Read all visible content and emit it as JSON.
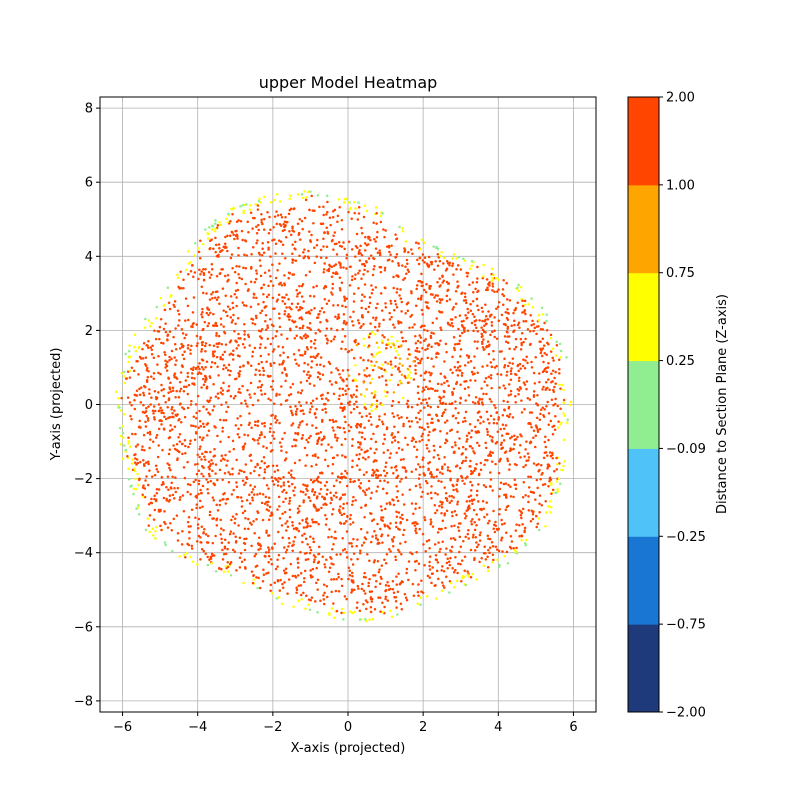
{
  "chart_data": {
    "type": "scatter",
    "title": "upper Model Heatmap",
    "xlabel": "X-axis (projected)",
    "ylabel": "Y-axis (projected)",
    "xlim": [
      -6.6,
      6.6
    ],
    "ylim": [
      -8.3,
      8.3
    ],
    "xticks": [
      -6,
      -4,
      -2,
      0,
      2,
      4,
      6
    ],
    "yticks": [
      -8,
      -6,
      -4,
      -2,
      0,
      2,
      4,
      6,
      8
    ],
    "xtick_labels": [
      "−6",
      "−4",
      "−2",
      "0",
      "2",
      "4",
      "6"
    ],
    "ytick_labels": [
      "−8",
      "−6",
      "−4",
      "−2",
      "0",
      "2",
      "4",
      "6",
      "8"
    ],
    "grid": true,
    "point_color_default": "#ff4500",
    "outline": {
      "description_units": "data",
      "boundary_xy": [
        [
          -1.0,
          5.78
        ],
        [
          0.0,
          5.6
        ],
        [
          0.8,
          5.3
        ],
        [
          1.8,
          4.5
        ],
        [
          2.7,
          4.2
        ],
        [
          3.6,
          3.8
        ],
        [
          4.5,
          3.3
        ],
        [
          5.3,
          2.5
        ],
        [
          5.8,
          1.4
        ],
        [
          5.95,
          0.2
        ],
        [
          5.8,
          -1.8
        ],
        [
          5.3,
          -3.3
        ],
        [
          4.3,
          -4.3
        ],
        [
          3.0,
          -4.95
        ],
        [
          1.8,
          -5.6
        ],
        [
          0.5,
          -5.9
        ],
        [
          -0.8,
          -5.7
        ],
        [
          -2.0,
          -5.3
        ],
        [
          -3.0,
          -4.7
        ],
        [
          -4.5,
          -4.2
        ],
        [
          -5.5,
          -3.3
        ],
        [
          -6.0,
          -1.5
        ],
        [
          -6.2,
          0.2
        ],
        [
          -5.9,
          1.5
        ],
        [
          -5.0,
          3.0
        ],
        [
          -4.0,
          4.6
        ],
        [
          -3.0,
          5.4
        ],
        [
          -2.0,
          5.7
        ]
      ],
      "yellow_patch_center": [
        0.9,
        0.9
      ]
    },
    "colorbar": {
      "label": "Distance to Section Plane (Z-axis)",
      "boundaries": [
        -2.0,
        -0.75,
        -0.25,
        -0.09,
        0.25,
        0.75,
        1.0,
        2.0
      ],
      "tick_labels": [
        "−2.00",
        "−0.75",
        "−0.25",
        "−0.09",
        "0.25",
        "0.75",
        "1.00",
        "2.00"
      ],
      "colors": [
        "#1f3a7a",
        "#1976d2",
        "#4fc3f7",
        "#90ee90",
        "#ffff00",
        "#ffa500",
        "#ff4500"
      ]
    }
  }
}
